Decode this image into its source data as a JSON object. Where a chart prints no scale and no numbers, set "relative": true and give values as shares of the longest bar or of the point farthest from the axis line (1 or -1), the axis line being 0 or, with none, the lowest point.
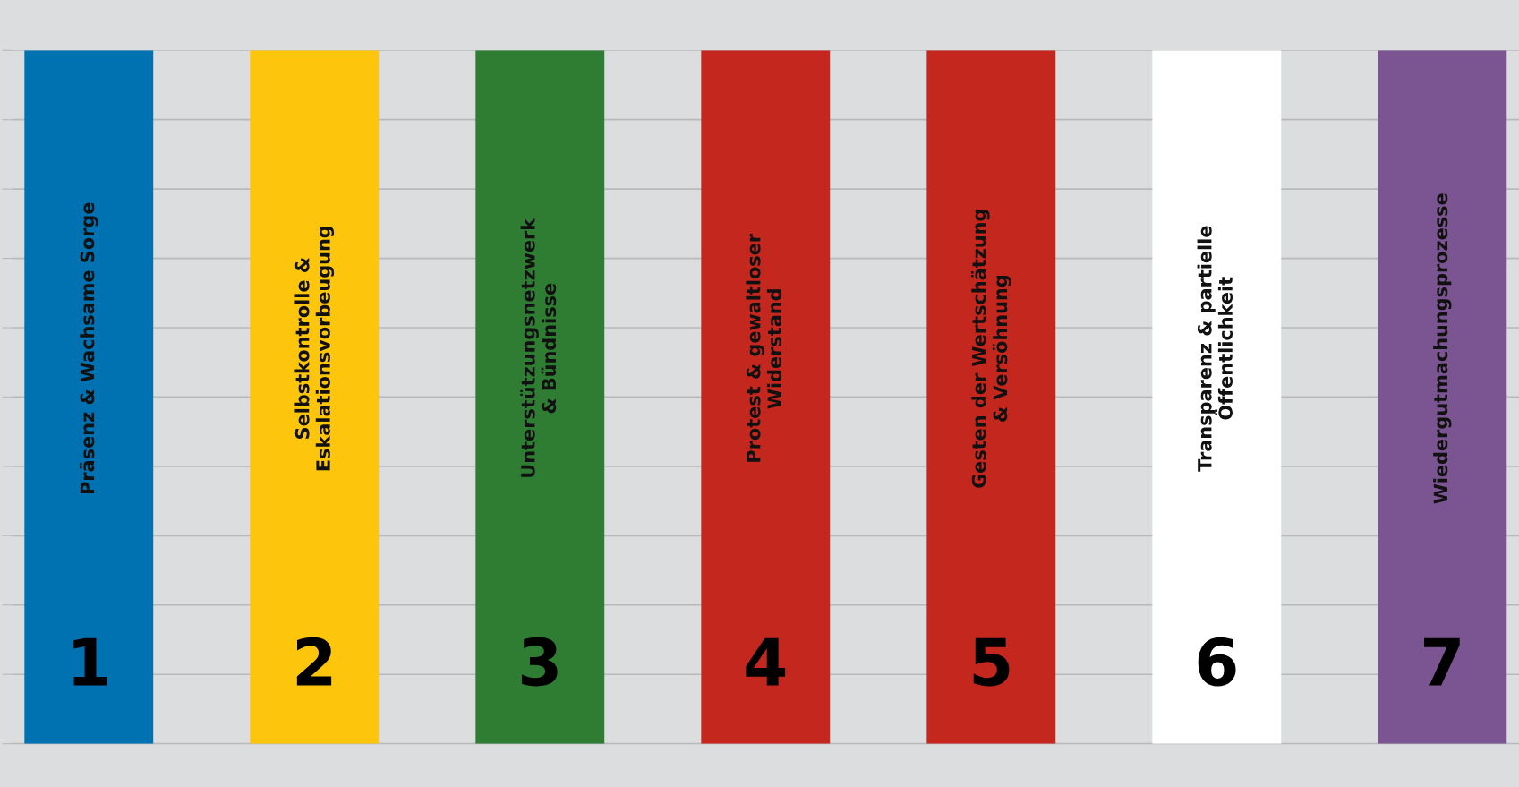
{
  "chart_data": {
    "type": "bar",
    "relative": true,
    "categories": [
      "Präsenz & Wachsame Sorge",
      "Selbstkontrolle &\nEskalationsvorbeugung",
      "Unterstützungsnetzwerk\n& Bündnisse",
      "Protest & gewaltloser\nWiderstand",
      "Gesten der Wertschätzung\n& Versöhnung",
      "Transparenz & partielle\nÖffentlichkeit",
      "Wiedergutmachungsprozesse"
    ],
    "values": [
      1,
      1,
      1,
      1,
      1,
      1,
      1
    ],
    "annotations": [
      "1",
      "2",
      "3",
      "4",
      "5",
      "6",
      "7"
    ],
    "colors": [
      "#0072b1",
      "#fdc60c",
      "#2e7d32",
      "#c4271e",
      "#c4271e",
      "#ffffff",
      "#7b5591"
    ],
    "grid": "y",
    "tick_labels": false
  }
}
